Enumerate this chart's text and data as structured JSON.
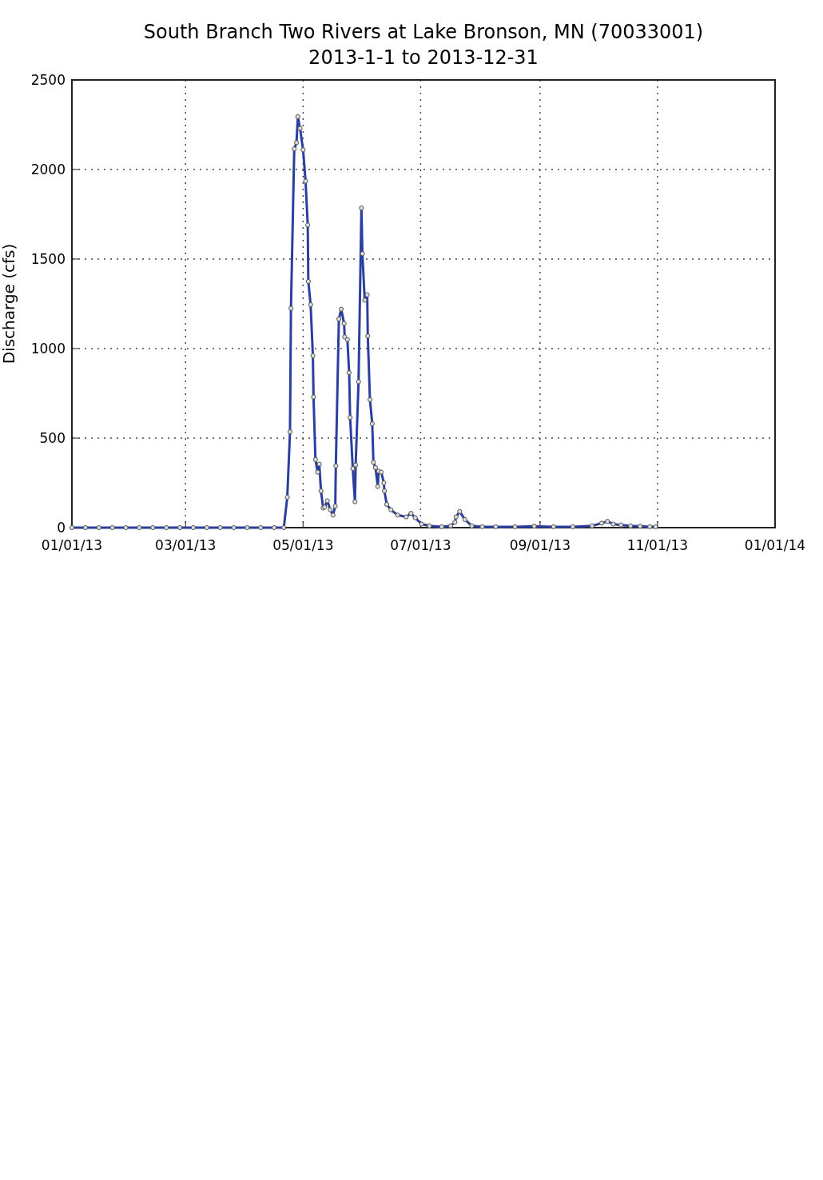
{
  "chart_data": {
    "type": "line",
    "title": "South Branch Two Rivers at Lake Bronson, MN (70033001)",
    "subtitle": "2013-1-1 to 2013-12-31",
    "ylabel": "Discharge (cfs)",
    "x": [
      "2013-01-01",
      "2013-01-08",
      "2013-01-15",
      "2013-01-22",
      "2013-01-29",
      "2013-02-05",
      "2013-02-12",
      "2013-02-19",
      "2013-02-26",
      "2013-03-05",
      "2013-03-12",
      "2013-03-19",
      "2013-03-26",
      "2013-04-02",
      "2013-04-09",
      "2013-04-16",
      "2013-04-21",
      "2013-04-22T19:00",
      "2013-04-24T05:00",
      "2013-04-24T17:00",
      "2013-04-26T10:00",
      "2013-04-27T14:00",
      "2013-04-28T07:00",
      "2013-04-29T10:00",
      "2013-05-01T00:00",
      "2013-05-02T07:00",
      "2013-05-03T10:00",
      "2013-05-03T17:00",
      "2013-05-04T22:00",
      "2013-05-06T02:00",
      "2013-05-06T10:00",
      "2013-05-07T10:00",
      "2013-05-08T14:00",
      "2013-05-09T10:00",
      "2013-05-10T07:00",
      "2013-05-11T10:00",
      "2013-05-12T05:00",
      "2013-05-13T14:00",
      "2013-05-15T02:00",
      "2013-05-16T12:00",
      "2013-05-17T17:00",
      "2013-05-18T00:00",
      "2013-05-19T14:00",
      "2013-05-20T19:00",
      "2013-05-22T07:00",
      "2013-05-22T14:00",
      "2013-05-24T00:00",
      "2013-05-24T22:00",
      "2013-05-25T10:00",
      "2013-05-26T19:00",
      "2013-05-27T22:00",
      "2013-05-28T07:00",
      "2013-05-29T19:00",
      "2013-05-31T07:00",
      "2013-05-31T19:00",
      "2013-06-02T00:00",
      "2013-06-03T07:00",
      "2013-06-03T14:00",
      "2013-06-04T17:00",
      "2013-06-05T22:00",
      "2013-06-06T12:00",
      "2013-06-07T14:00",
      "2013-06-08T19:00",
      "2013-06-09T05:00",
      "2013-06-10T14:00",
      "2013-06-11T22:00",
      "2013-06-12T05:00",
      "2013-06-13T10:00",
      "2013-06-15T14:00",
      "2013-06-19T02:00",
      "2013-06-23T12:00",
      "2013-06-26T00:00",
      "2013-06-28T05:00",
      "2013-07-01T12:00",
      "2013-07-05T14:00",
      "2013-07-12",
      "2013-07-16T14:00",
      "2013-07-18T19:00",
      "2013-07-19T10:00",
      "2013-07-21T07:00",
      "2013-07-24",
      "2013-07-27T14:00",
      "2013-08-02",
      "2013-08-09",
      "2013-08-19",
      "2013-08-29",
      "2013-09-08",
      "2013-09-18",
      "2013-09-28",
      "2013-10-03",
      "2013-10-06",
      "2013-10-09",
      "2013-10-13",
      "2013-10-18",
      "2013-10-23",
      "2013-10-28",
      "2013-10-31"
    ],
    "series": [
      {
        "color": "#2b3f9e",
        "values": [
          0,
          0,
          0,
          0,
          0,
          0,
          0,
          0,
          0,
          0,
          0,
          0,
          0,
          0,
          0,
          0,
          0,
          170,
          535,
          1225,
          2115,
          2150,
          2295,
          2230,
          2110,
          1935,
          1690,
          1375,
          1245,
          960,
          730,
          380,
          310,
          355,
          205,
          110,
          115,
          150,
          100,
          70,
          120,
          345,
          1165,
          1220,
          1140,
          1065,
          1050,
          865,
          615,
          330,
          145,
          350,
          815,
          1785,
          1530,
          1270,
          1300,
          1070,
          715,
          580,
          365,
          335,
          230,
          315,
          310,
          250,
          205,
          130,
          100,
          70,
          60,
          80,
          55,
          20,
          10,
          5,
          10,
          30,
          60,
          90,
          45,
          10,
          5,
          5,
          5,
          8,
          5,
          5,
          10,
          25,
          35,
          20,
          15,
          10,
          8,
          5,
          5
        ]
      }
    ],
    "xlim": [
      "2013-01-01",
      "2014-01-01"
    ],
    "xticks": [
      {
        "value": "2013-01-01",
        "label": "01/01/13"
      },
      {
        "value": "2013-03-01",
        "label": "03/01/13"
      },
      {
        "value": "2013-05-01",
        "label": "05/01/13"
      },
      {
        "value": "2013-07-01",
        "label": "07/01/13"
      },
      {
        "value": "2013-09-01",
        "label": "09/01/13"
      },
      {
        "value": "2013-11-01",
        "label": "11/01/13"
      },
      {
        "value": "2014-01-01",
        "label": "01/01/14"
      }
    ],
    "ylim": [
      0,
      2500
    ],
    "yticks": [
      0,
      500,
      1000,
      1500,
      2000,
      2500
    ],
    "grid": true,
    "marker": "circle",
    "line_style": "solid"
  }
}
